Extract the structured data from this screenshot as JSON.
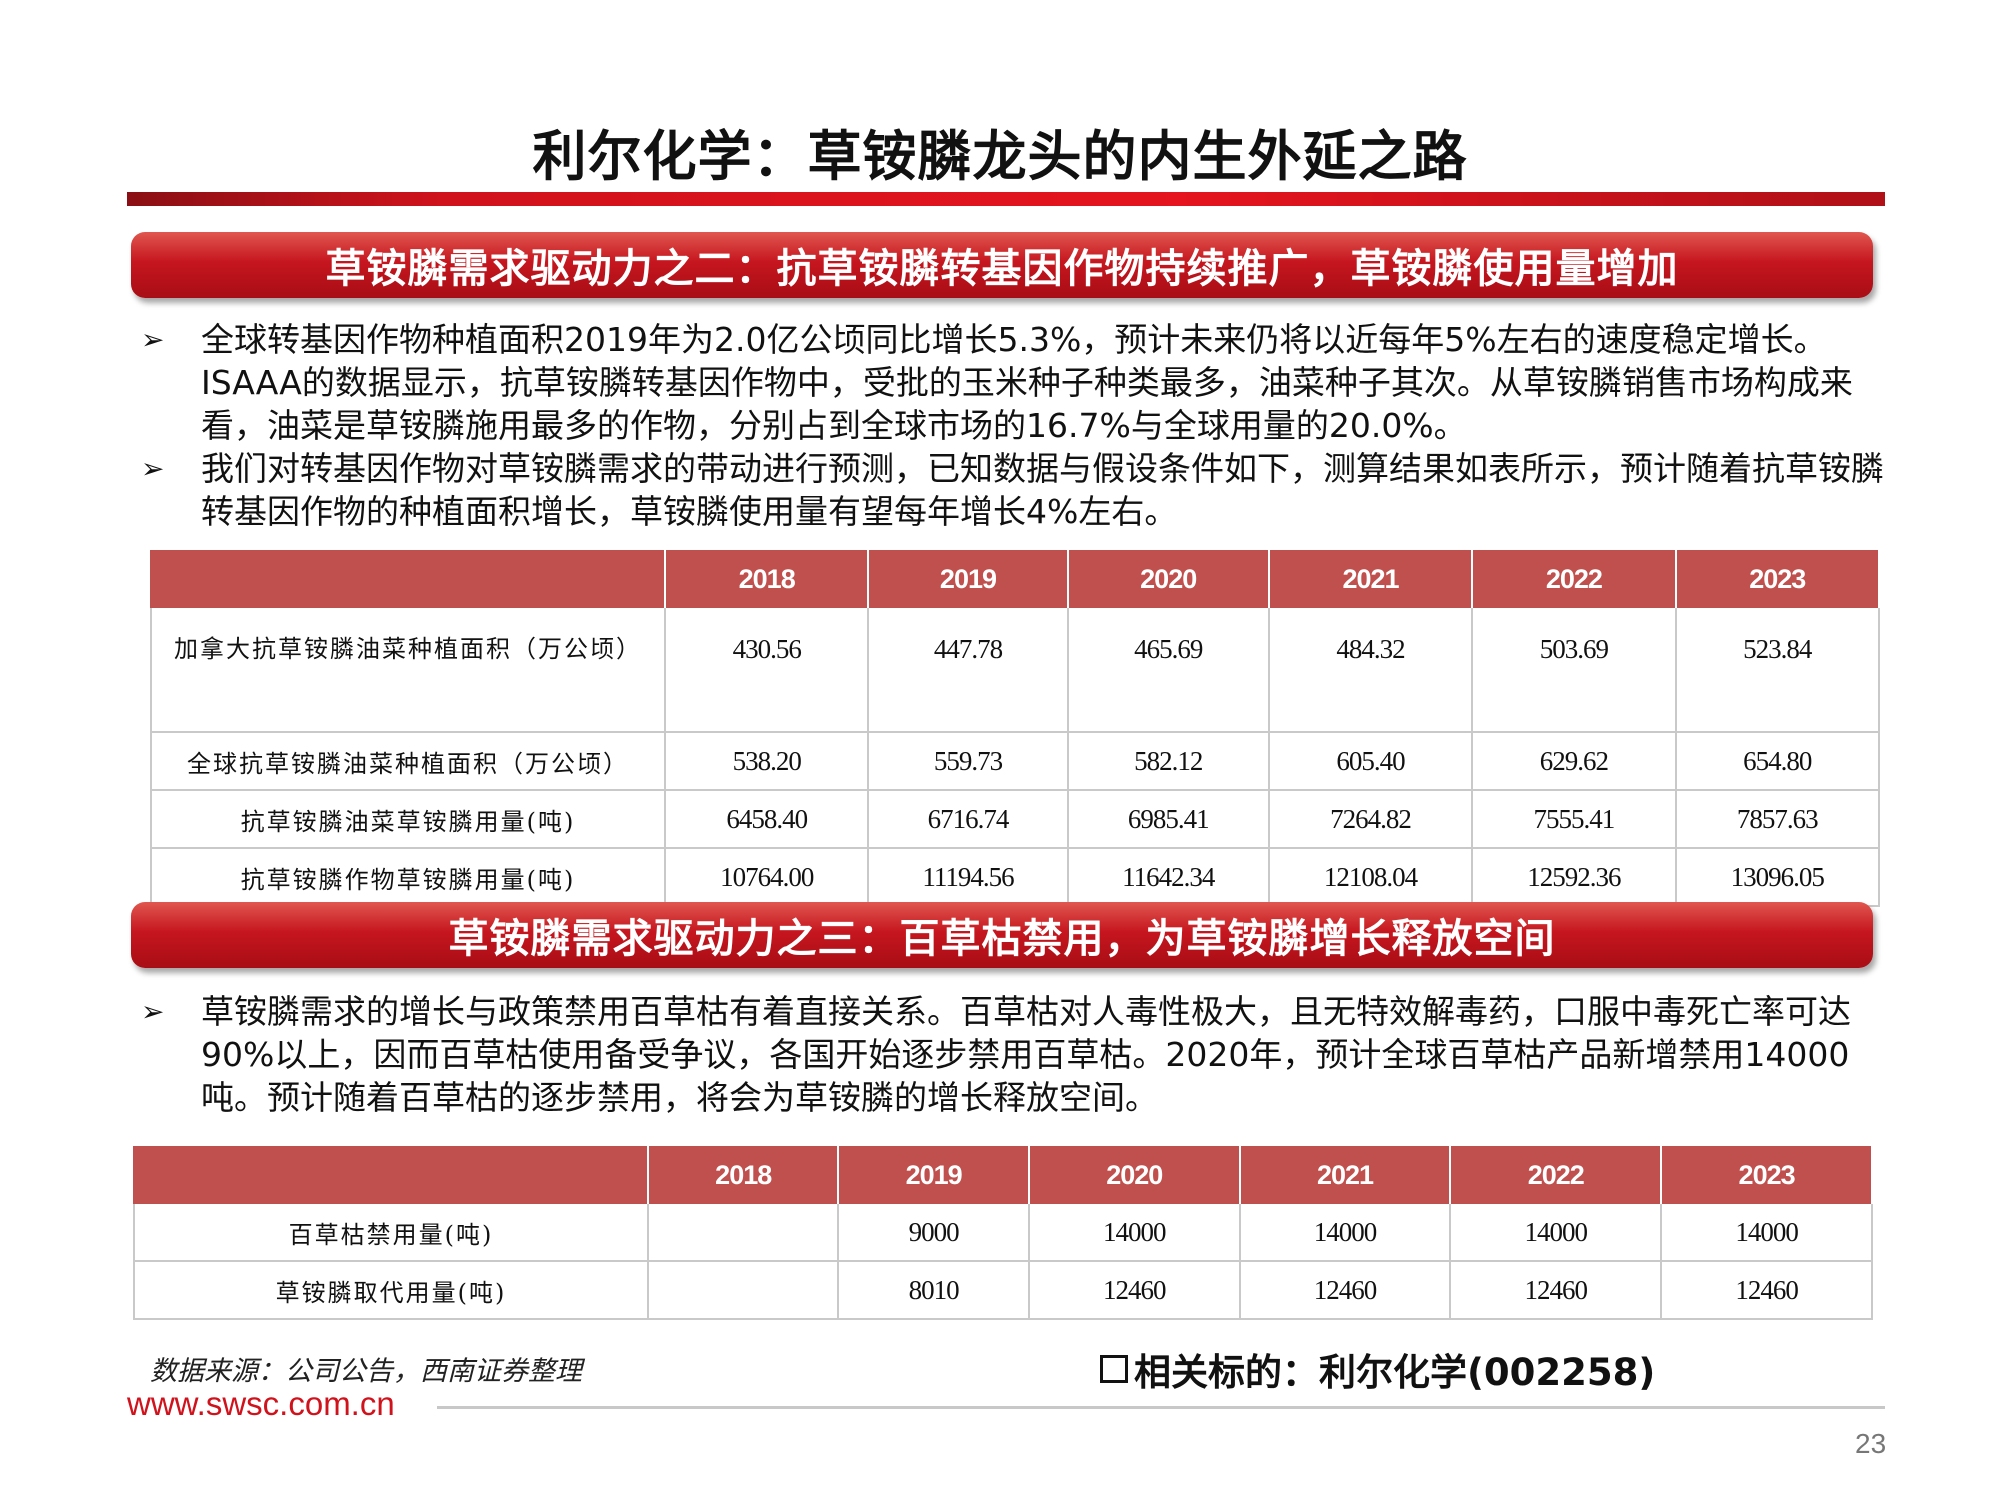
{
  "title": "利尔化学：草铵膦龙头的内生外延之路",
  "section1": {
    "banner": "草铵膦需求驱动力之二：抗草铵膦转基因作物持续推广，草铵膦使用量增加",
    "bullet_marker": "➢",
    "bullets": [
      "全球转基因作物种植面积2019年为2.0亿公顷同比增长5.3%，预计未来仍将以近每年5%左右的速度稳定增长。ISAAA的数据显示，抗草铵膦转基因作物中，受批的玉米种子种类最多，油菜种子其次。从草铵膦销售市场构成来看，油菜是草铵膦施用最多的作物，分别占到全球市场的16.7%与全球用量的20.0%。",
      "我们对转基因作物对草铵膦需求的带动进行预测，已知数据与假设条件如下，测算结果如表所示，预计随着抗草铵膦转基因作物的种植面积增长，草铵膦使用量有望每年增长4%左右。"
    ],
    "table": {
      "headers": [
        "",
        "2018",
        "2019",
        "2020",
        "2021",
        "2022",
        "2023"
      ],
      "rows": [
        {
          "label": "加拿大抗草铵膦油菜种植面积（万公顷）",
          "values": [
            "430.56",
            "447.78",
            "465.69",
            "484.32",
            "503.69",
            "523.84"
          ]
        },
        {
          "label": "全球抗草铵膦油菜种植面积（万公顷）",
          "values": [
            "538.20",
            "559.73",
            "582.12",
            "605.40",
            "629.62",
            "654.80"
          ]
        },
        {
          "label": "抗草铵膦油菜草铵膦用量(吨)",
          "values": [
            "6458.40",
            "6716.74",
            "6985.41",
            "7264.82",
            "7555.41",
            "7857.63"
          ]
        },
        {
          "label": "抗草铵膦作物草铵膦用量(吨)",
          "values": [
            "10764.00",
            "11194.56",
            "11642.34",
            "12108.04",
            "12592.36",
            "13096.05"
          ]
        }
      ]
    }
  },
  "section2": {
    "banner": "草铵膦需求驱动力之三：百草枯禁用，为草铵膦增长释放空间",
    "bullet_marker": "➢",
    "bullets": [
      "草铵膦需求的增长与政策禁用百草枯有着直接关系。百草枯对人毒性极大，且无特效解毒药，口服中毒死亡率可达90%以上，因而百草枯使用备受争议，各国开始逐步禁用百草枯。2020年，预计全球百草枯产品新增禁用14000吨。预计随着百草枯的逐步禁用，将会为草铵膦的增长释放空间。"
    ],
    "table": {
      "headers": [
        "",
        "2018",
        "2019",
        "2020",
        "2021",
        "2022",
        "2023"
      ],
      "rows": [
        {
          "label": "百草枯禁用量(吨)",
          "values": [
            "",
            "9000",
            "14000",
            "14000",
            "14000",
            "14000"
          ]
        },
        {
          "label": "草铵膦取代用量(吨)",
          "values": [
            "",
            "8010",
            "12460",
            "12460",
            "12460",
            "12460"
          ]
        }
      ]
    }
  },
  "footer": {
    "source": "数据来源：公司公告，西南证券整理",
    "related_label": "相关标的：",
    "related_value": "利尔化学(002258)",
    "url": "www.swsc.com.cn",
    "page_number": "23"
  },
  "colors": {
    "brand_red": "#d0121c",
    "table_header": "#c0504d"
  }
}
